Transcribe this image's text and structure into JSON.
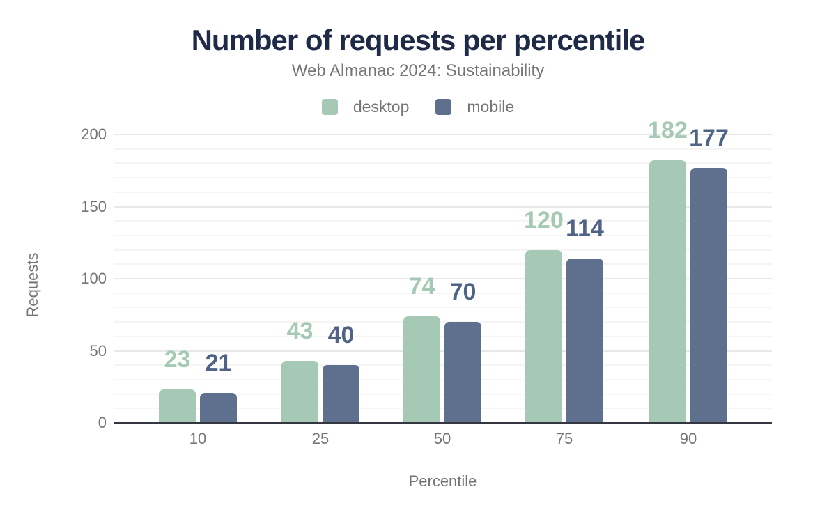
{
  "chart_data": {
    "type": "bar",
    "title": "Number of requests per percentile",
    "subtitle": "Web Almanac 2024: Sustainability",
    "xlabel": "Percentile",
    "ylabel": "Requests",
    "categories": [
      "10",
      "25",
      "50",
      "75",
      "90"
    ],
    "series": [
      {
        "name": "desktop",
        "values": [
          23,
          43,
          74,
          120,
          182
        ],
        "color": "#a5c9b5",
        "label_color": "#a5c9b5"
      },
      {
        "name": "mobile",
        "values": [
          21,
          40,
          70,
          114,
          177
        ],
        "color": "#5e708d",
        "label_color": "#4f6387"
      }
    ],
    "ylim": [
      0,
      200
    ],
    "yticks": [
      0,
      50,
      100,
      150,
      200
    ],
    "minor_grid_step": 10,
    "grid": "on",
    "legend_position": "top"
  },
  "colors": {
    "title": "#1e2a47",
    "subtitle": "#757575",
    "axis_text": "#757575",
    "axis_line": "#343640",
    "gridline_major": "#e8e8e8",
    "gridline_minor": "#f5f5f5",
    "background": "#ffffff"
  }
}
